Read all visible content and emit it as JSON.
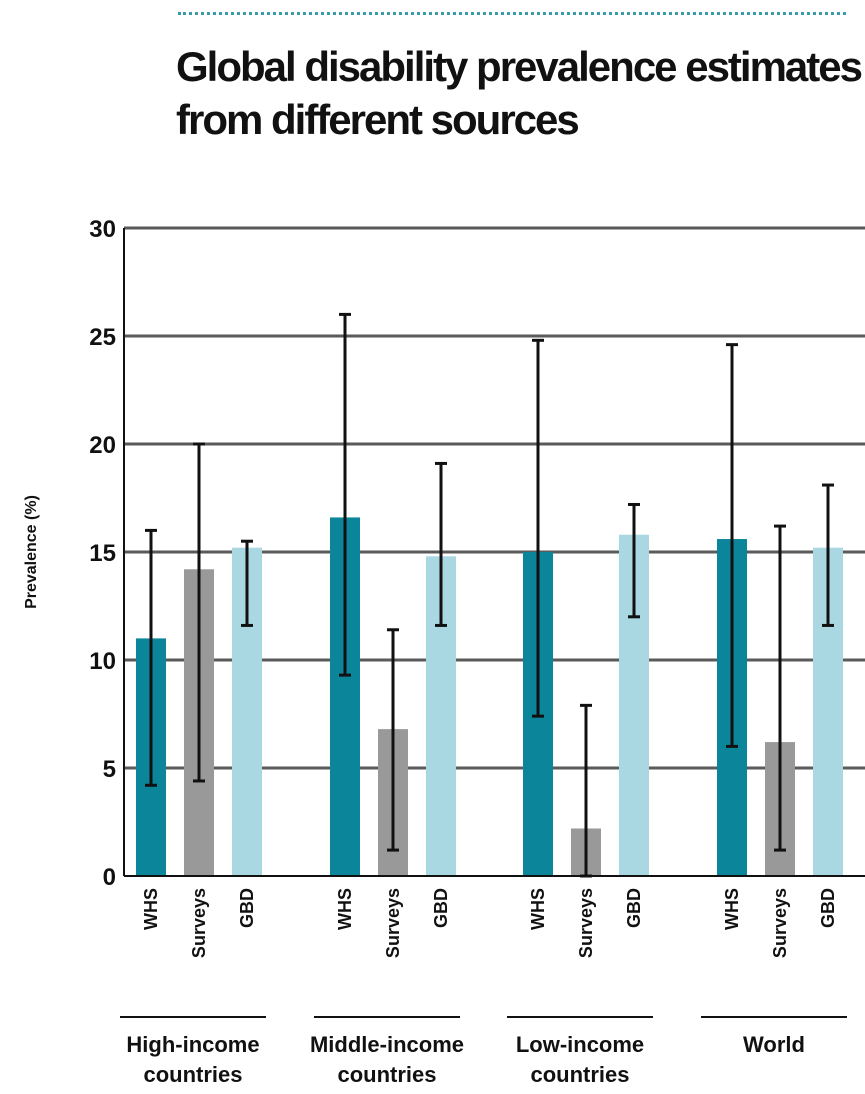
{
  "title": "Global disability prevalence estimates from different sources",
  "colors": {
    "WHS": "#0b8599",
    "Surveys": "#999999",
    "GBD": "#a9d8e3",
    "whisker": "#111111",
    "grid": "#5a5a5a",
    "rule": "#3a9aa8"
  },
  "chart_data": {
    "type": "bar",
    "title": "Global disability prevalence estimates from different sources",
    "ylabel": "Prevalence (%)",
    "xlabel": "",
    "ylim": [
      0,
      30
    ],
    "yticks": [
      0,
      5,
      10,
      15,
      20,
      25,
      30
    ],
    "grid": true,
    "groups": [
      "High-income countries",
      "Middle-income countries",
      "Low-income countries",
      "World"
    ],
    "sources": [
      "WHS",
      "Surveys",
      "GBD"
    ],
    "series": [
      {
        "name": "WHS",
        "values": [
          11.0,
          16.6,
          15.0,
          15.6
        ],
        "low": [
          4.2,
          9.3,
          7.4,
          6.0
        ],
        "high": [
          16.0,
          26.0,
          24.8,
          24.6
        ]
      },
      {
        "name": "Surveys",
        "values": [
          14.2,
          6.8,
          2.2,
          6.2
        ],
        "low": [
          4.4,
          1.2,
          0.0,
          1.2
        ],
        "high": [
          20.0,
          11.4,
          7.9,
          16.2
        ]
      },
      {
        "name": "GBD",
        "values": [
          15.2,
          14.8,
          15.8,
          15.2
        ],
        "low": [
          11.6,
          11.6,
          12.0,
          11.6
        ],
        "high": [
          15.5,
          19.1,
          17.2,
          18.1
        ]
      }
    ]
  }
}
